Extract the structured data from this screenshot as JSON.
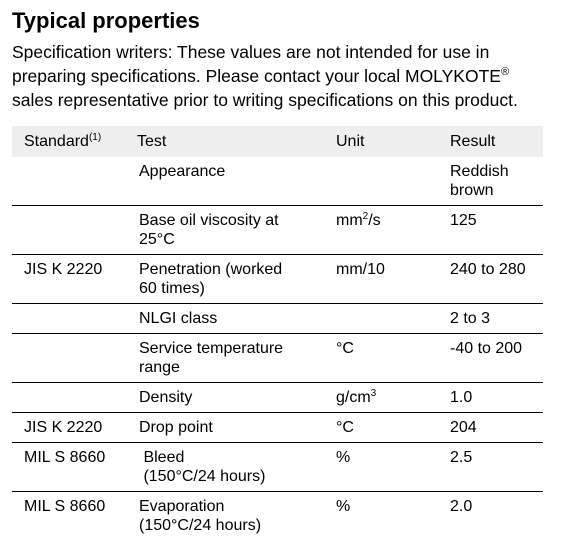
{
  "section": {
    "title": "Typical properties",
    "intro_lines": [
      "Specification writers: These values are not intended for use in",
      "preparing specifications. Please contact your local MOLYKOTE",
      "sales representative prior to writing specifications on this product."
    ],
    "intro_registered_mark": "®"
  },
  "table": {
    "headers": {
      "standard": "Standard",
      "standard_footnote": "(1)",
      "test": "Test",
      "unit": "Unit",
      "result": "Result"
    },
    "rows": [
      {
        "standard": "",
        "test": [
          "Appearance"
        ],
        "unit": "",
        "unit_sup": "",
        "result": [
          "Reddish",
          "brown"
        ]
      },
      {
        "standard": "",
        "test": [
          "Base oil viscosity at",
          "25°C"
        ],
        "unit": "mm",
        "unit_sup": "2",
        "unit_suffix": "/s",
        "result": [
          "125"
        ]
      },
      {
        "standard": "JIS K 2220",
        "test": [
          "Penetration (worked",
          "60 times)"
        ],
        "unit": "mm/10",
        "unit_sup": "",
        "result": [
          "240 to 280"
        ]
      },
      {
        "standard": "",
        "test": [
          "NLGI class"
        ],
        "unit": "",
        "unit_sup": "",
        "result": [
          "2 to 3"
        ]
      },
      {
        "standard": "",
        "test": [
          "Service temperature",
          "range"
        ],
        "unit": "°C",
        "unit_sup": "",
        "result": [
          "-40 to 200"
        ]
      },
      {
        "standard": "",
        "test": [
          "Density"
        ],
        "unit": "g/cm",
        "unit_sup": "3",
        "result": [
          "1.0"
        ]
      },
      {
        "standard": "JIS K 2220",
        "test": [
          "Drop point"
        ],
        "unit": "°C",
        "unit_sup": "",
        "result": [
          "204"
        ]
      },
      {
        "standard": "MIL S 8660",
        "test": [
          " Bleed",
          " (150°C/24 hours)"
        ],
        "unit": "%",
        "unit_sup": "",
        "result": [
          "2.5"
        ]
      },
      {
        "standard": "MIL S 8660",
        "test": [
          "Evaporation",
          "(150°C/24 hours)"
        ],
        "unit": "%",
        "unit_sup": "",
        "result": [
          "2.0"
        ]
      }
    ]
  }
}
